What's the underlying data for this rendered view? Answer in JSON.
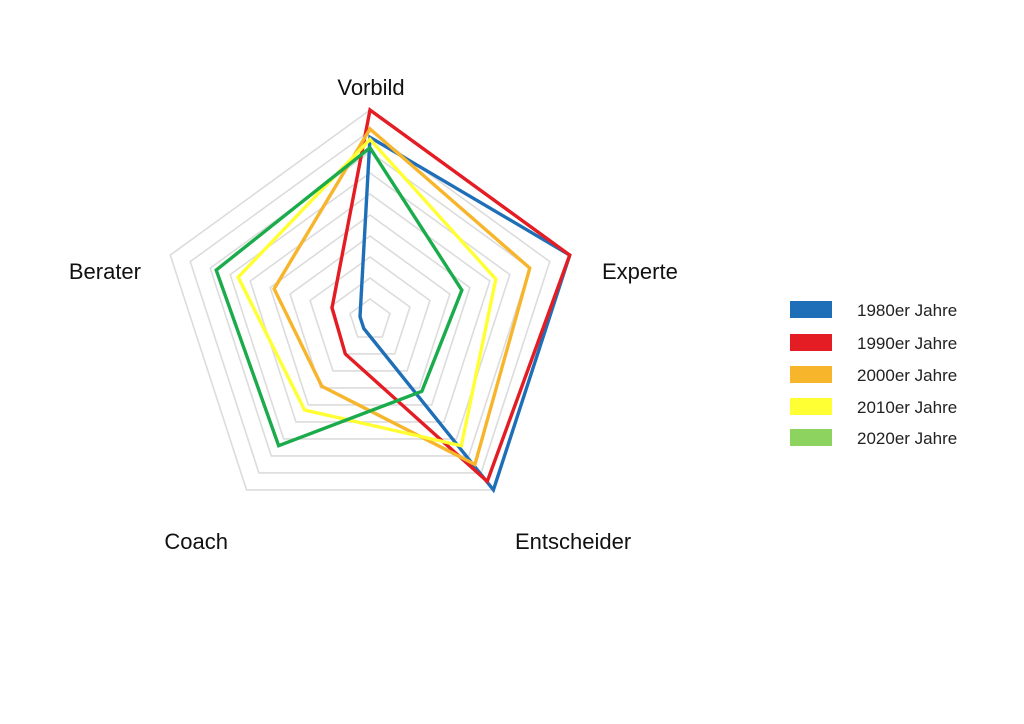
{
  "chart_data": {
    "type": "radar",
    "title": "",
    "axes": [
      "Vorbild",
      "Experte",
      "Entscheider",
      "Coach",
      "Berater"
    ],
    "range": [
      0,
      10
    ],
    "grid_levels": 10,
    "grid": true,
    "legend_position": "right",
    "series": [
      {
        "name": "1980er Jahre",
        "color": "#1f6fb8",
        "values": [
          8.7,
          10,
          10,
          0.5,
          0.5
        ]
      },
      {
        "name": "1990er Jahre",
        "color": "#e41c23",
        "values": [
          10,
          10,
          9.5,
          2.0,
          1.9
        ]
      },
      {
        "name": "2000er Jahre",
        "color": "#f7b52c",
        "values": [
          9.1,
          8.0,
          8.5,
          3.9,
          4.8
        ]
      },
      {
        "name": "2010er Jahre",
        "color": "#ffff33",
        "values": [
          8.6,
          6.3,
          7.4,
          5.3,
          6.6
        ]
      },
      {
        "name": "2020er Jahre",
        "color": "#1aab4b",
        "values": [
          8.2,
          4.6,
          4.2,
          7.4,
          7.7
        ]
      }
    ],
    "legend_swatch_colors": [
      "#1f6fb8",
      "#e41c23",
      "#f7b52c",
      "#ffff33",
      "#8cd35f"
    ]
  }
}
